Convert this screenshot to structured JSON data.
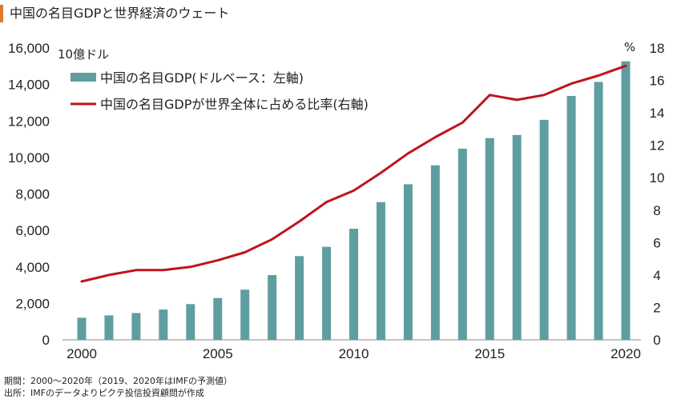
{
  "title": "中国の名目GDPと世界経済のウェート",
  "colors": {
    "accent": "#e07a2e",
    "bar": "#5f9ea0",
    "line": "#c0141c"
  },
  "footer": {
    "note": "期間：2000～2020年（2019、2020年はIMFの予測値）",
    "source": "出所：IMFのデータよりピクテ投信投資顧問が作成"
  },
  "chart_data": {
    "type": "bar",
    "x": [
      2000,
      2001,
      2002,
      2003,
      2004,
      2005,
      2006,
      2007,
      2008,
      2009,
      2010,
      2011,
      2012,
      2013,
      2014,
      2015,
      2016,
      2017,
      2018,
      2019,
      2020
    ],
    "x_tick_labels": [
      "2000",
      "2005",
      "2010",
      "2015",
      "2020"
    ],
    "y_left_unit": "10億ドル",
    "y_right_unit": "%",
    "y_left_ticks": [
      "0",
      "2,000",
      "4,000",
      "6,000",
      "8,000",
      "10,000",
      "12,000",
      "14,000",
      "16,000"
    ],
    "y_right_ticks": [
      "0",
      "2",
      "4",
      "6",
      "8",
      "10",
      "12",
      "14",
      "16",
      "18"
    ],
    "ylim_left": [
      0,
      16000
    ],
    "ylim_right": [
      0,
      18
    ],
    "legend_placement": "top-left",
    "grid": false,
    "series": [
      {
        "name": "中国の名目GDP(ドルベース：左軸)",
        "type": "bar",
        "axis": "left",
        "color": "#5f9ea0",
        "values": [
          1210,
          1340,
          1470,
          1660,
          1960,
          2290,
          2750,
          3550,
          4590,
          5100,
          6090,
          7550,
          8530,
          9570,
          10480,
          11060,
          11230,
          12060,
          13370,
          14140,
          15270
        ]
      },
      {
        "name": "中国の名目GDPが世界全体に占める比率(右軸)",
        "type": "line",
        "axis": "right",
        "color": "#c0141c",
        "values": [
          3.6,
          4.0,
          4.3,
          4.3,
          4.5,
          4.9,
          5.4,
          6.2,
          7.3,
          8.5,
          9.2,
          10.3,
          11.5,
          12.5,
          13.4,
          15.1,
          14.8,
          15.1,
          15.8,
          16.3,
          16.9
        ]
      }
    ]
  }
}
